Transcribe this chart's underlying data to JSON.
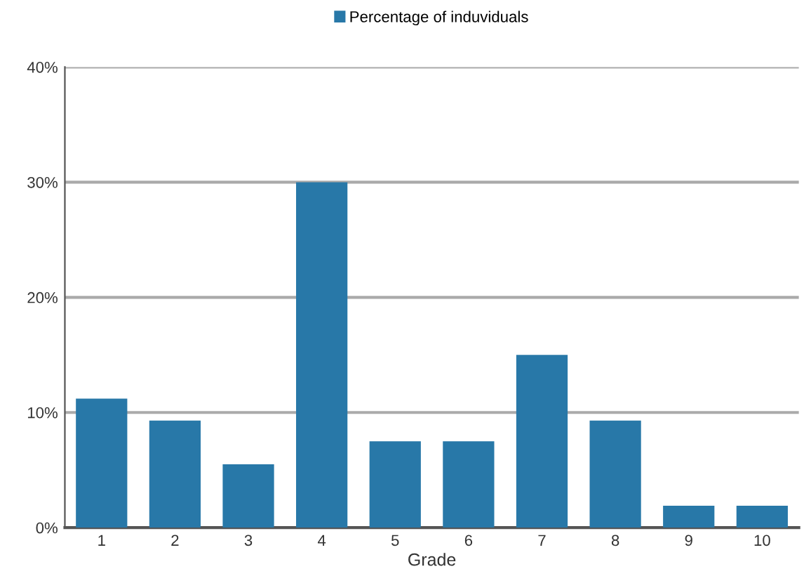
{
  "chart_data": {
    "type": "bar",
    "xlabel": "Grade",
    "categories": [
      "1",
      "2",
      "3",
      "4",
      "5",
      "6",
      "7",
      "8",
      "9",
      "10"
    ],
    "series": [
      {
        "name": "Percentage of induviduals",
        "color": "#2878a8",
        "values": [
          11.2,
          9.3,
          5.5,
          30,
          7.5,
          7.5,
          15,
          9.3,
          1.9,
          1.9
        ]
      }
    ],
    "ylim": [
      0,
      40
    ],
    "yticks": [
      {
        "value": 0,
        "label": "0%"
      },
      {
        "value": 10,
        "label": "10%"
      },
      {
        "value": 20,
        "label": "20%"
      },
      {
        "value": 30,
        "label": "30%"
      },
      {
        "value": 40,
        "label": "40%"
      }
    ],
    "grid": "y",
    "legend": "top"
  }
}
